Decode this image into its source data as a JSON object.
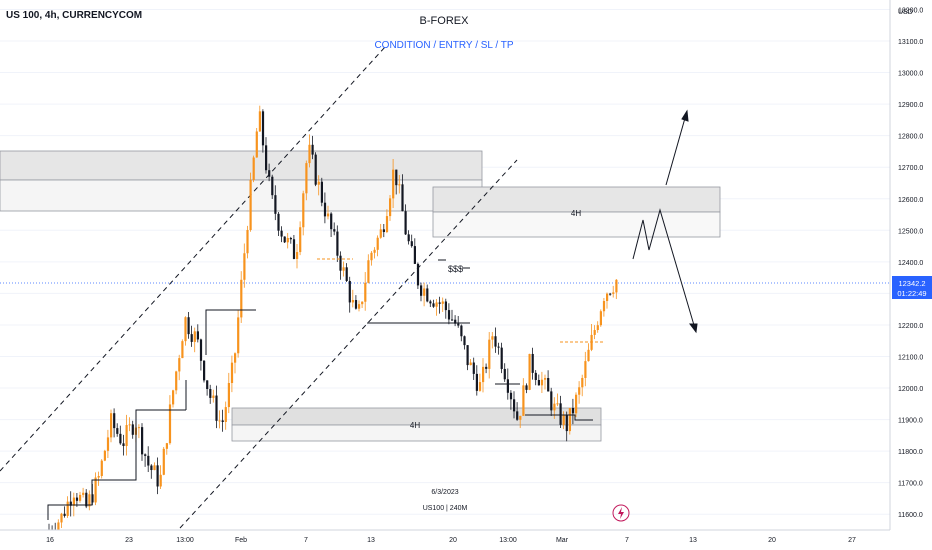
{
  "header": {
    "symbol": "US 100, 4h, CURRENCYCOM",
    "brand": "B-FOREX",
    "subtitle": "CONDITION / ENTRY / SL / TP"
  },
  "watermark": {
    "line1": "6/3/2023",
    "line2": "US100 | 240M"
  },
  "axis": {
    "currency": "USD",
    "price_ticks": [
      13200,
      13100,
      13000,
      12900,
      12800,
      12700,
      12600,
      12500,
      12400,
      12300,
      12200,
      12100,
      12000,
      11900,
      11800,
      11700,
      11600
    ],
    "price_tick_labels": [
      "13200.0",
      "13100.0",
      "13000.0",
      "12900.0",
      "12800.0",
      "12700.0",
      "12600.0",
      "12500.0",
      "12400.0",
      "12300.0",
      "12200.0",
      "12100.0",
      "12000.0",
      "11900.0",
      "11800.0",
      "11700.0",
      "11600.0"
    ],
    "time_ticks": [
      "16",
      "23",
      "13:00",
      "Feb",
      "7",
      "13",
      "20",
      "13:00",
      "Mar",
      "7",
      "13",
      "20",
      "27"
    ]
  },
  "last_price": {
    "value": "12342.2",
    "countdown": "01:22:49",
    "color": "#2962ff"
  },
  "annotations": {
    "zone_label": "4H",
    "liquidity_label": "$$$"
  },
  "colors": {
    "up": "#f7931e",
    "down": "#131722",
    "zone_fill": "#e6e6e6",
    "grid": "#f0f3fa"
  },
  "chart_data": {
    "type": "candlestick",
    "title": "US 100, 4h, CURRENCYCOM",
    "ylabel": "USD",
    "ylim": [
      11550,
      13230
    ],
    "close_trend": [
      11550,
      11590,
      11680,
      11620,
      11710,
      11890,
      11830,
      11900,
      11760,
      11700,
      11980,
      12220,
      12150,
      11980,
      11880,
      12080,
      12500,
      12870,
      12600,
      12480,
      12420,
      12760,
      12620,
      12480,
      12350,
      12210,
      12420,
      12500,
      12700,
      12480,
      12330,
      12290,
      12260,
      12200,
      12080,
      12000,
      12180,
      12050,
      11900,
      12080,
      12020,
      11930,
      11880,
      11990,
      12150,
      12300,
      12342.2
    ],
    "zones": [
      {
        "label": "",
        "from": 12790,
        "to": 12580
      },
      {
        "label": "4H",
        "from": 12660,
        "to": 12500
      },
      {
        "label": "4H",
        "from": 11930,
        "to": 11820
      }
    ],
    "liquidity_level": 12375,
    "current_price": 12342.2
  }
}
